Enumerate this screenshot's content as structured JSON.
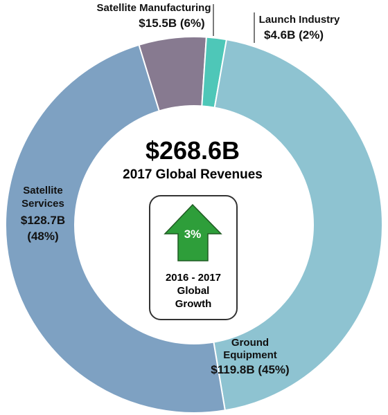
{
  "chart_data": {
    "type": "pie",
    "variant": "donut",
    "slices": [
      {
        "label_lines": [
          "Satellite Manufacturing"
        ],
        "value_text": "$15.5B (6%)",
        "value": 15.5,
        "percent": 6,
        "color": "#877a90"
      },
      {
        "label_lines": [
          "Launch Industry"
        ],
        "value_text": "$4.6B (2%)",
        "value": 4.6,
        "percent": 2,
        "color": "#4ec7b8"
      },
      {
        "label_lines": [
          "Ground",
          "Equipment"
        ],
        "value_text": "$119.8B (45%)",
        "value": 119.8,
        "percent": 45,
        "color": "#8ec3d1"
      },
      {
        "label_lines": [
          "Satellite",
          "Services"
        ],
        "value_text_lines": [
          "$128.7B",
          "(48%)"
        ],
        "value": 128.7,
        "percent": 48,
        "color": "#7ea1c2"
      }
    ],
    "total": {
      "value_text": "$268.6B",
      "label": "2017 Global Revenues"
    },
    "growth": {
      "value_text": "3%",
      "label_lines": [
        "2016 - 2017",
        "Global",
        "Growth"
      ],
      "arrow_color": "#2e9e3a"
    }
  }
}
